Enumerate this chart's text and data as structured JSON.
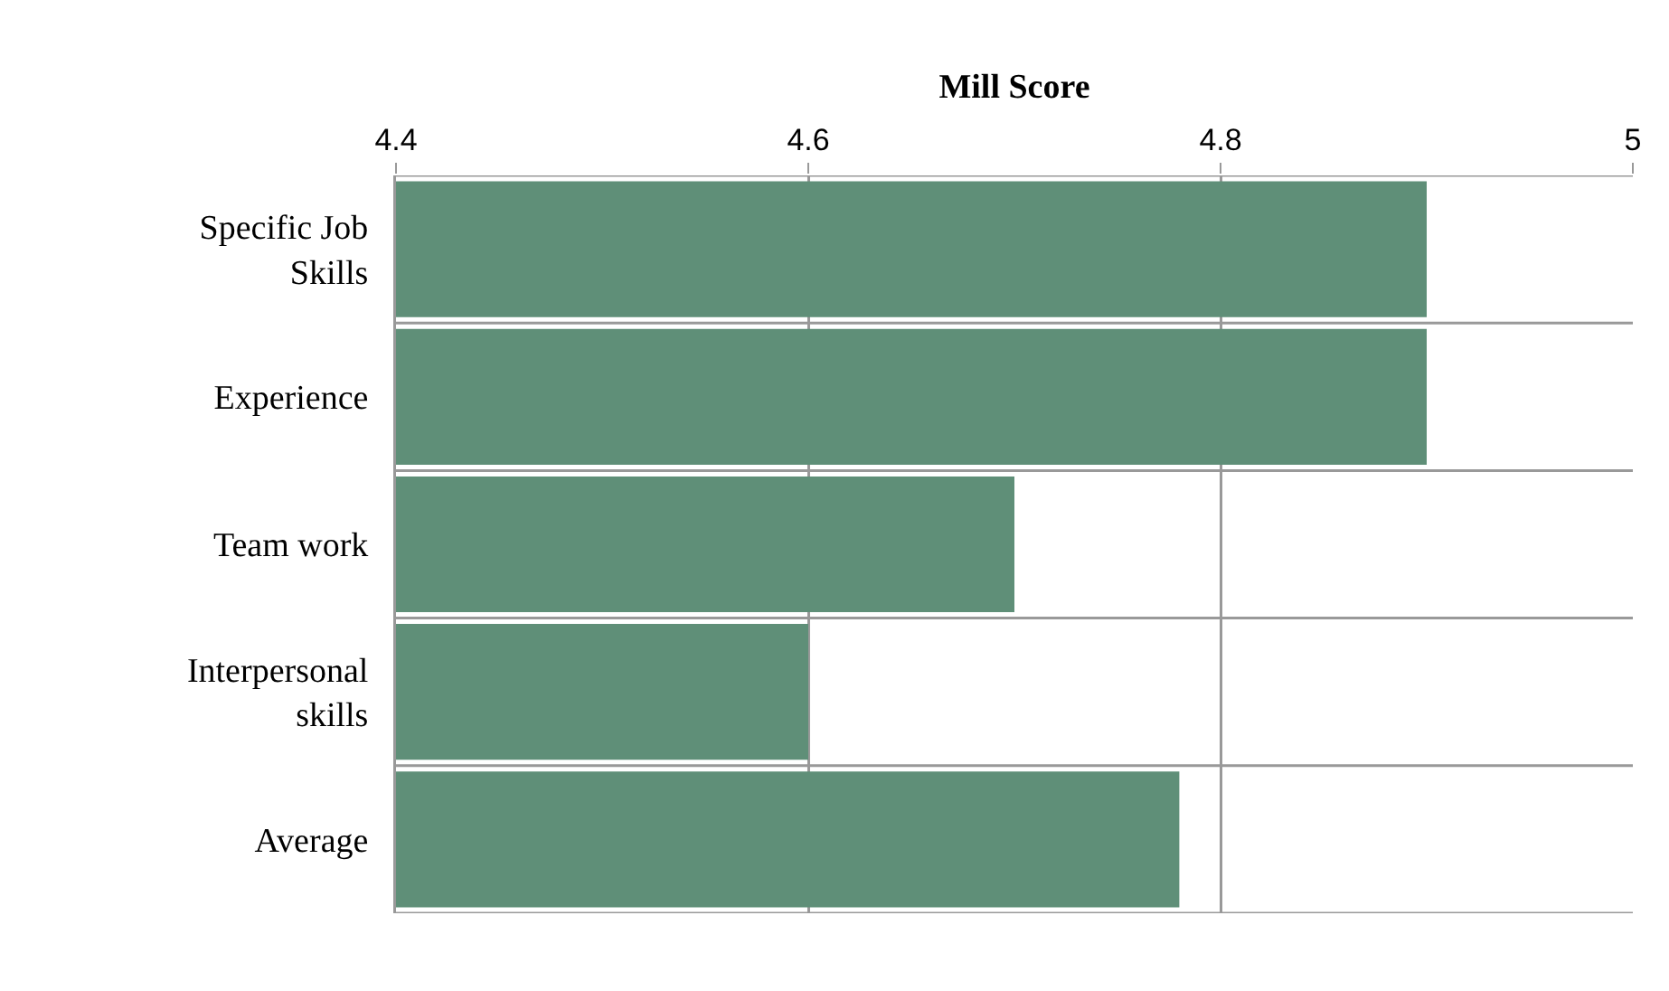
{
  "chart_data": {
    "type": "bar",
    "orientation": "horizontal",
    "xlabel": "Mill Score",
    "categories": [
      "Specific Job Skills",
      "Experience",
      "Team work",
      "Interpersonal skills",
      "Average"
    ],
    "values": [
      4.9,
      4.9,
      4.7,
      4.6,
      4.78
    ],
    "color": "#5f8f78",
    "xlim": [
      4.4,
      5
    ],
    "xticks": [
      4.4,
      4.6,
      4.8,
      5
    ],
    "grid": true
  }
}
